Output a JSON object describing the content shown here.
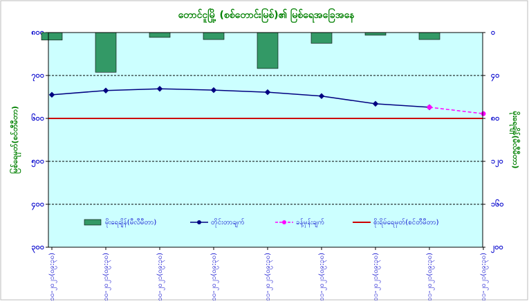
{
  "chart_data": {
    "type": "bar_line",
    "title": "တောင်ငူမြို့ (စစ်တောင်းမြစ်)၏ မြစ်ရေအခြေအနေ",
    "ylabel": "မြစ်ရေမှတ်(စင်တီမီတာ)",
    "y2label": "မိုးရေချိန်(မီလီမီတာ)",
    "categories": [
      "၂၈-၁၀-၂၀၂၁(၀၉:၃၀)",
      "၂၉-၁၀-၂၀၂၁(၀၉:၃၀)",
      "၃၀-၁၀-၂၀၂၁(၀၉:၃၀)",
      "၃၁-၁၀-၂၀၂၁(၀၉:၃၀)",
      "၁-၁၁-၂၀၂၁(၀၉:၃၀)",
      "၂-၁၁-၂၀၂၁(၀၉:၃၀)",
      "၃-၁၁-၂၀၂၁(၀၉:၃၀)",
      "၄-၁၁-၂၀၂၁(၀၉:၃၀)",
      "၅-၁၁-၂၀၂၁(၀၉:၃၀)"
    ],
    "ylim": [
      300,
      800
    ],
    "yticks": [
      {
        "value": 800,
        "label": "၈၀၀"
      },
      {
        "value": 700,
        "label": "၇၀၀"
      },
      {
        "value": 600,
        "label": "၆၀၀"
      },
      {
        "value": 500,
        "label": "၅၀၀"
      },
      {
        "value": 400,
        "label": "၄၀၀"
      },
      {
        "value": 300,
        "label": "၃၀၀"
      }
    ],
    "y2lim": [
      0,
      200
    ],
    "y2_inverted": true,
    "y2ticks": [
      {
        "value": 0,
        "label": "၀"
      },
      {
        "value": 40,
        "label": "၄၀"
      },
      {
        "value": 80,
        "label": "၈၀"
      },
      {
        "value": 120,
        "label": "၁၂၀"
      },
      {
        "value": 160,
        "label": "၁၆၀"
      },
      {
        "value": 200,
        "label": "၂၀၀"
      }
    ],
    "grid": true,
    "series": [
      {
        "name": "မိုးရေချိန်(မီလီမီတာ)",
        "type": "bar",
        "axis": "y2",
        "color": "#339966",
        "values": [
          7,
          37,
          4.5,
          6.5,
          33.5,
          10,
          2.5,
          6.5,
          null
        ]
      },
      {
        "name": "တိုင်းတာချက်",
        "type": "line",
        "color": "#000080",
        "values": [
          655,
          665,
          669,
          666,
          661,
          652,
          634,
          626,
          null
        ]
      },
      {
        "name": "ခန့်မှန်းချက်",
        "type": "line",
        "dashed": true,
        "color": "#ff00ff",
        "values": [
          null,
          null,
          null,
          null,
          null,
          null,
          null,
          626,
          611
        ]
      }
    ],
    "reference_line": {
      "name": "စိုးရိမ်ရေမှတ်(စင်တီမီတာ)",
      "color": "#cc0000",
      "value": 600
    }
  }
}
